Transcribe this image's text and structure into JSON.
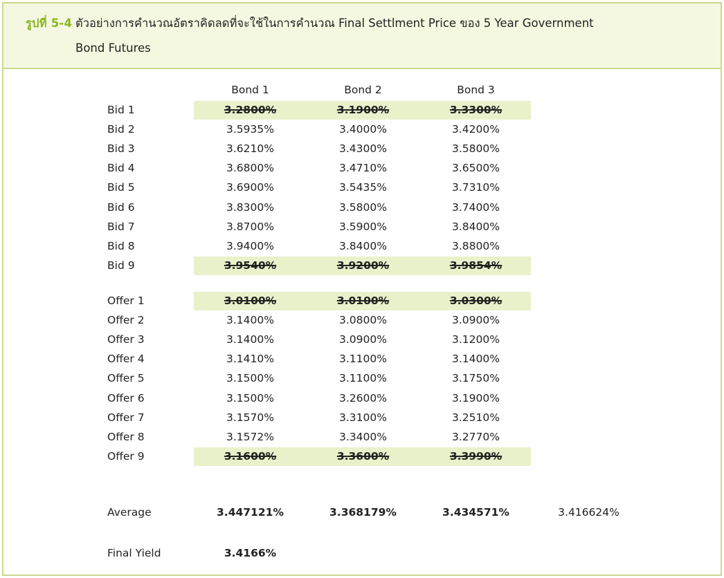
{
  "caption": {
    "label": "รูปที่ 5-4",
    "line1": "ตัวอย่างการคำนวณอัตราคิดลดที่จะใช้ในการคำนวณ Final Settlment Price ของ 5 Year Government",
    "line2": "Bond Futures"
  },
  "table": {
    "headers": [
      "Bond 1",
      "Bond 2",
      "Bond 3"
    ],
    "bids": [
      {
        "label": "Bid 1",
        "values": [
          "3.2800%",
          "3.1900%",
          "3.3300%"
        ]
      },
      {
        "label": "Bid 2",
        "values": [
          "3.5935%",
          "3.4000%",
          "3.4200%"
        ]
      },
      {
        "label": "Bid 3",
        "values": [
          "3.6210%",
          "3.4300%",
          "3.5800%"
        ]
      },
      {
        "label": "Bid 4",
        "values": [
          "3.6800%",
          "3.4710%",
          "3.6500%"
        ]
      },
      {
        "label": "Bid 5",
        "values": [
          "3.6900%",
          "3.5435%",
          "3.7310%"
        ]
      },
      {
        "label": "Bid 6",
        "values": [
          "3.8300%",
          "3.5800%",
          "3.7400%"
        ]
      },
      {
        "label": "Bid 7",
        "values": [
          "3.8700%",
          "3.5900%",
          "3.8400%"
        ]
      },
      {
        "label": "Bid 8",
        "values": [
          "3.9400%",
          "3.8400%",
          "3.8800%"
        ]
      },
      {
        "label": "Bid 9",
        "values": [
          "3.9540%",
          "3.9200%",
          "3.9854%"
        ]
      }
    ],
    "offers": [
      {
        "label": "Offer 1",
        "values": [
          "3.0100%",
          "3.0100%",
          "3.0300%"
        ]
      },
      {
        "label": "Offer 2",
        "values": [
          "3.1400%",
          "3.0800%",
          "3.0900%"
        ]
      },
      {
        "label": "Offer 3",
        "values": [
          "3.1400%",
          "3.0900%",
          "3.1200%"
        ]
      },
      {
        "label": "Offer 4",
        "values": [
          "3.1410%",
          "3.1100%",
          "3.1400%"
        ]
      },
      {
        "label": "Offer 5",
        "values": [
          "3.1500%",
          "3.1100%",
          "3.1750%"
        ]
      },
      {
        "label": "Offer 6",
        "values": [
          "3.1500%",
          "3.2600%",
          "3.1900%"
        ]
      },
      {
        "label": "Offer 7",
        "values": [
          "3.1570%",
          "3.3100%",
          "3.2510%"
        ]
      },
      {
        "label": "Offer 8",
        "values": [
          "3.1572%",
          "3.3400%",
          "3.2770%"
        ]
      },
      {
        "label": "Offer 9",
        "values": [
          "3.1600%",
          "3.3600%",
          "3.3990%"
        ]
      }
    ],
    "average": {
      "label": "Average",
      "values": [
        "3.447121%",
        "3.368179%",
        "3.434571%"
      ],
      "overall": "3.416624%"
    },
    "final_yield": {
      "label": "Final Yield",
      "value": "3.4166%"
    }
  },
  "colors": {
    "accent": "#8cb423",
    "border": "#c9d98f",
    "header_bg": "#f4f8e0",
    "highlight": "#e9f1cb"
  }
}
